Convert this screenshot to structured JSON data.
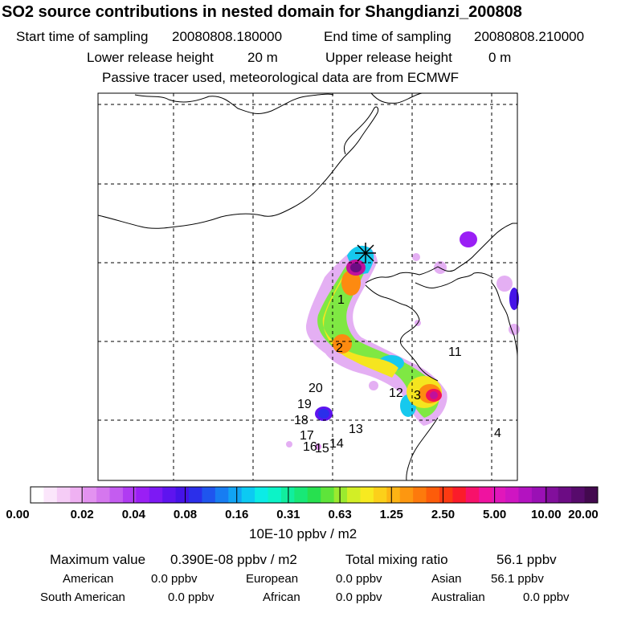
{
  "title": "SO2 source contributions in nested domain for Shangdianzi_200808",
  "header": {
    "start_label": "Start time of sampling",
    "start_value": "20080808.180000",
    "end_label": "End time of sampling",
    "end_value": "20080808.210000",
    "lower_label": "Lower release height",
    "lower_value": "20 m",
    "upper_label": "Upper release height",
    "upper_value": "0 m",
    "note": "Passive tracer used, meteorological data are from ECMWF"
  },
  "chart_data": {
    "type": "heatmap",
    "title": "SO2 source contributions in nested domain for Shangdianzi_200808",
    "colorbar": {
      "tick_labels": [
        "0.00",
        "0.02",
        "0.04",
        "0.08",
        "0.16",
        "0.31",
        "0.63",
        "1.25",
        "2.50",
        "5.00",
        "10.00",
        "20.00"
      ],
      "units": "10E-10 ppbv / m2",
      "colors": [
        "#ffffff",
        "#fbe6fb",
        "#f5ccf6",
        "#efb1f2",
        "#e392f0",
        "#d577ee",
        "#c45cf0",
        "#b03bf2",
        "#9a1ff5",
        "#7d19f4",
        "#5e14ef",
        "#4513e8",
        "#2b2fea",
        "#1f55ee",
        "#177df2",
        "#11a4f4",
        "#0ccaf2",
        "#0bece6",
        "#0cf3c7",
        "#11ee9e",
        "#18e877",
        "#27e04f",
        "#5ee43a",
        "#9bea2f",
        "#d2ee26",
        "#f7ea20",
        "#fcd01a",
        "#fdb414",
        "#fd9710",
        "#fd7a0c",
        "#fd5c0a",
        "#fd3a12",
        "#fb1c2a",
        "#f7116a",
        "#ef13a0",
        "#e117bb",
        "#cf15c2",
        "#b313c0",
        "#9a10b5",
        "#820f9c",
        "#6c0c84",
        "#570b6c",
        "#43094f"
      ]
    },
    "receptor_markers": [
      "1",
      "2",
      "3",
      "4",
      "11",
      "12",
      "13",
      "14",
      "15",
      "16",
      "17",
      "18",
      "19",
      "20"
    ],
    "max_value_label": "Maximum value",
    "max_value": "0.390E-08 ppbv / m2",
    "total_label": "Total mixing ratio",
    "total_value": "56.1 ppbv",
    "regions": [
      {
        "name": "American",
        "value": "0.0 ppbv"
      },
      {
        "name": "European",
        "value": "0.0 ppbv"
      },
      {
        "name": "Asian",
        "value": "56.1 ppbv"
      },
      {
        "name": "South American",
        "value": "0.0 ppbv"
      },
      {
        "name": "African",
        "value": "0.0 ppbv"
      },
      {
        "name": "Australian",
        "value": "0.0 ppbv"
      }
    ]
  }
}
